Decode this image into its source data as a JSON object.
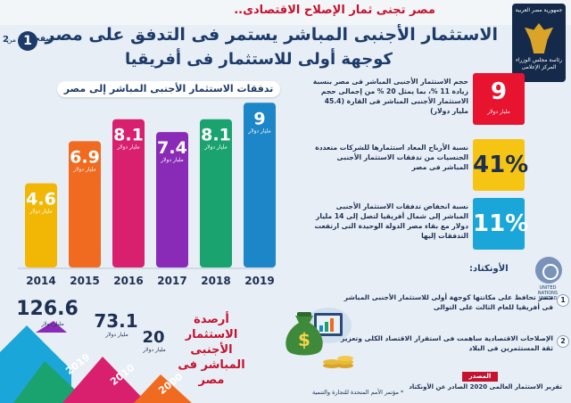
{
  "header": {
    "kicker": "مصر تجنى ثمار الإصلاح الاقتصادى..",
    "title_line1": "الاستثمار الأجنبى المباشر يستمر فى التدفق على مصر",
    "title_line2": "كوجهة أولى للاستثمار فى أفريقيا",
    "page_word": "صفحة",
    "page_current": "1",
    "page_of": "من",
    "page_total": "2",
    "seal_top": "جمهورية مصر العربية",
    "seal_bottom": "رئاسة مجلس الوزراء المركز الإعلامى"
  },
  "chart_data": {
    "type": "bar",
    "title": "تدفقات الاستثمار الأجنبى المباشر إلى مصر",
    "unit": "مليار دولار",
    "categories": [
      "2014",
      "2015",
      "2016",
      "2017",
      "2018",
      "2019"
    ],
    "values": [
      4.6,
      6.9,
      8.1,
      7.4,
      8.1,
      9
    ],
    "value_labels": [
      "4.6",
      "6.9",
      "8.1",
      "7.4",
      "8.1",
      "9"
    ],
    "ylim": [
      0,
      9.5
    ],
    "grid": false,
    "colors": [
      "#f2b705",
      "#f06a1f",
      "#d8206f",
      "#8a2bb8",
      "#1aa36e",
      "#1c86c8"
    ]
  },
  "stats": [
    {
      "value": "9",
      "unit": "مليار دولار",
      "text": "حجم الاستثمار الأجنبى المباشر فى مصر بنسبة زيادة 11 %، بما يمثل 20 % من إجمالى حجم الاستثمار الأجنبى المباشر فى القارة (45.4 مليار دولار)",
      "box_color": "#e8132f",
      "value_color": "#ffffff"
    },
    {
      "value": "41%",
      "unit": "",
      "text": "نسبة الأرباح المعاد استثمارها للشركات متعددة الجنسيات من تدفقات الاستثمار الأجنبى المباشر فى مصر",
      "box_color": "#f6c514",
      "value_color": "#1d2f52"
    },
    {
      "value": "11%",
      "unit": "",
      "text": "نسبة انخفاض تدفقات الاستثمار الأجنبى المباشر إلى شمال أفريقيا لتصل إلى 14 مليار دولار مع بقاء مصر الدولة الوحيدة التى ارتفعت التدفقات إليها",
      "box_color": "#1aa6d9",
      "value_color": "#ffffff"
    }
  ],
  "unctad": {
    "title": "الأونكتاد:",
    "logo_name": "UNITED NATIONS UNCTAD",
    "points": [
      {
        "num": "1",
        "text": "مصر تحافظ على مكانتها كوجهة أولى للاستثمار الأجنبى المباشر فى أفريقيا للعام الثالث على التوالى"
      },
      {
        "num": "2",
        "text": "الإصلاحات الاقتصادية ساهمت فى استقرار الاقتصاد الكلى وتعزيز ثقة المستثمرين فى البلاد"
      }
    ]
  },
  "reserves": {
    "title": "أرصدة الاستثمار الأجنبى المباشر فى مصر",
    "unit": "مليار دولار",
    "items": [
      {
        "year": "2019",
        "value": "126.6"
      },
      {
        "year": "2010",
        "value": "73.1"
      },
      {
        "year": "2000",
        "value": "20"
      }
    ]
  },
  "source": {
    "label": "المصدر",
    "text": "تقرير الاستثمار العالمى 2020 الصادر عن الأونكتاد",
    "footnote": "* مؤتمر الأمم المتحدة للتجارة والتنمية"
  }
}
